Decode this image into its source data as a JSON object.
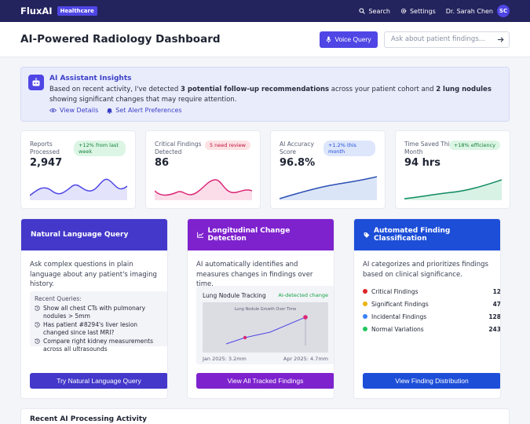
{
  "nav": {
    "logo": "FluxAI",
    "tag": "Healthcare",
    "search_label": "Search",
    "settings_label": "Settings",
    "user_name": "Dr. Sarah Chen",
    "user_initials": "SC"
  },
  "header": {
    "title": "AI-Powered Radiology Dashboard",
    "voice_label": "Voice Query",
    "ask_placeholder": "Ask about patient findings..."
  },
  "insights": {
    "title": "AI Assistant Insights",
    "text_1": "Based on recent activity, I've detected ",
    "bold_1": "3 potential follow-up recommendations",
    "text_2": " across your patient cohort and ",
    "bold_2": "2 lung nodules",
    "text_3": " showing significant changes that may require attention.",
    "view_details": "View Details",
    "set_alert": "Set Alert Preferences"
  },
  "stats": [
    {
      "label": "Reports Processed",
      "value": "2,947",
      "badge": "+12% from last week",
      "badge_bg": "#dcf5e4",
      "badge_color": "#15803d",
      "line_color": "#4f46e5",
      "fill": "#e3e4fb"
    },
    {
      "label": "Critical Findings Detected",
      "value": "86",
      "badge": "5 need review",
      "badge_bg": "#fde2e4",
      "badge_color": "#be123c",
      "line_color": "#db2777",
      "fill": "#fbdde9"
    },
    {
      "label": "AI Accuracy Score",
      "value": "96.8%",
      "badge": "+1.2% this month",
      "badge_bg": "#dde6fb",
      "badge_color": "#1d4ed8",
      "line_color": "#2b50b5",
      "fill": "#dbe5f8"
    },
    {
      "label": "Time Saved This Month",
      "value": "94 hrs",
      "badge": "+18% efficiency",
      "badge_bg": "#dcf5e4",
      "badge_color": "#15803d",
      "line_color": "#0f8a5f",
      "fill": "#d8f2e6"
    }
  ],
  "features": {
    "nlq": {
      "title": "Natural Language Query",
      "color": "#4338ca",
      "desc": "Ask complex questions in plain language about any patient's imaging history.",
      "recent_title": "Recent Queries:",
      "queries": [
        "Show all chest CTs with pulmonary nodules > 5mm",
        "Has patient #8294's liver lesion changed since last MRI?",
        "Compare right kidney measurements across all ultrasounds"
      ],
      "button": "Try Natural Language Query"
    },
    "lcd": {
      "title": "Longitudinal Change Detection",
      "color": "#7e22ce",
      "desc": "AI automatically identifies and measures changes in findings over time.",
      "chart_title": "Lung Nodule Tracking",
      "chart_tag": "AI-detected change",
      "chart_inner_title": "Lung Nodule Growth Over Time",
      "start_label": "Jan 2025: 3.2mm",
      "end_label": "Apr 2025: 4.7mm",
      "button": "View All Tracked Findings"
    },
    "afc": {
      "title": "Automated Finding Classification",
      "color": "#1d4ed8",
      "desc": "AI categorizes and prioritizes findings based on clinical significance.",
      "classes": [
        {
          "label": "Critical Findings",
          "count": "12",
          "color": "#dc2626"
        },
        {
          "label": "Significant Findings",
          "count": "47",
          "color": "#eab308"
        },
        {
          "label": "Incidental Findings",
          "count": "128",
          "color": "#3b82f6"
        },
        {
          "label": "Normal Variations",
          "count": "243",
          "color": "#22c55e"
        }
      ],
      "button": "View Finding Distribution"
    }
  },
  "recent": {
    "title": "Recent AI Processing Activity"
  }
}
